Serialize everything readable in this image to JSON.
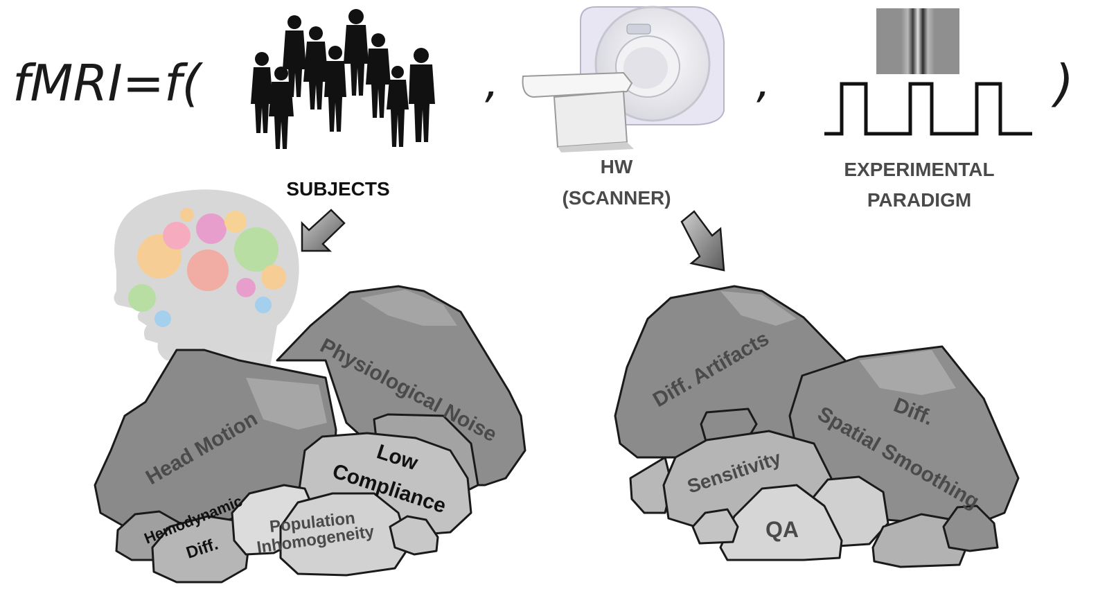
{
  "equation": {
    "prefix": "fMRI=f(",
    "comma1": ",",
    "comma2": ",",
    "close": ")"
  },
  "labels": {
    "subjects": "SUBJECTS",
    "hw_line1": "HW",
    "hw_line2": "(SCANNER)",
    "paradigm_line1": "EXPERIMENTAL",
    "paradigm_line2": "PARADIGM"
  },
  "left_rocks": {
    "physiological_noise": "Physiological Noise",
    "head_motion": "Head Motion",
    "low": "Low",
    "compliance": "Compliance",
    "hemodynamic": "Hemodynamic",
    "diff": "Diff.",
    "population": "Population",
    "inhomogeneity": "Inhomogeneity"
  },
  "right_rocks": {
    "diff_artifacts": "Diff. Artifacts",
    "diff": "Diff.",
    "spatial_smoothing": "Spatial Smoothing",
    "sensitivity": "Sensitivity",
    "qa": "QA"
  },
  "colors": {
    "rock_dark": "#8a8a8a",
    "rock_mid": "#a6a6a6",
    "rock_light": "#c6c6c6",
    "rock_lighter": "#d8d8d8",
    "outline": "#1a1a1a",
    "label_text": "#4a4a4a",
    "arrow_fill": "#8c8c8c"
  }
}
